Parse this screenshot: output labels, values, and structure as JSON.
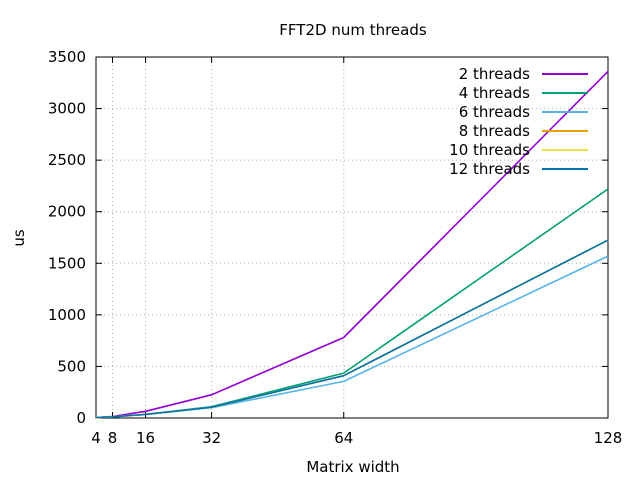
{
  "chart_data": {
    "type": "line",
    "title": "FFT2D num threads",
    "xlabel": "Matrix width",
    "ylabel": "us",
    "x": [
      4,
      8,
      16,
      32,
      64,
      128
    ],
    "x_ticks": [
      4,
      8,
      16,
      32,
      64,
      128
    ],
    "xlim": [
      4,
      128
    ],
    "ylim": [
      0,
      3500
    ],
    "y_ticks": [
      0,
      500,
      1000,
      1500,
      2000,
      2500,
      3000,
      3500
    ],
    "grid": true,
    "legend_position": "top-right",
    "series": [
      {
        "name": "2 threads",
        "color": "#9400d3",
        "values": [
          5,
          15,
          65,
          225,
          780,
          3360
        ]
      },
      {
        "name": "4 threads",
        "color": "#009e73",
        "values": [
          5,
          12,
          35,
          110,
          435,
          2220
        ]
      },
      {
        "name": "6 threads",
        "color": "#56b4e9",
        "values": [
          5,
          12,
          35,
          100,
          355,
          1570
        ]
      },
      {
        "name": "8 threads",
        "color": "#e69f00",
        "values": [
          5,
          12,
          35,
          105,
          410,
          1725
        ]
      },
      {
        "name": "10 threads",
        "color": "#f0e442",
        "values": [
          5,
          12,
          35,
          105,
          410,
          1725
        ]
      },
      {
        "name": "12 threads",
        "color": "#0072b2",
        "values": [
          5,
          12,
          35,
          105,
          410,
          1725
        ]
      }
    ]
  }
}
